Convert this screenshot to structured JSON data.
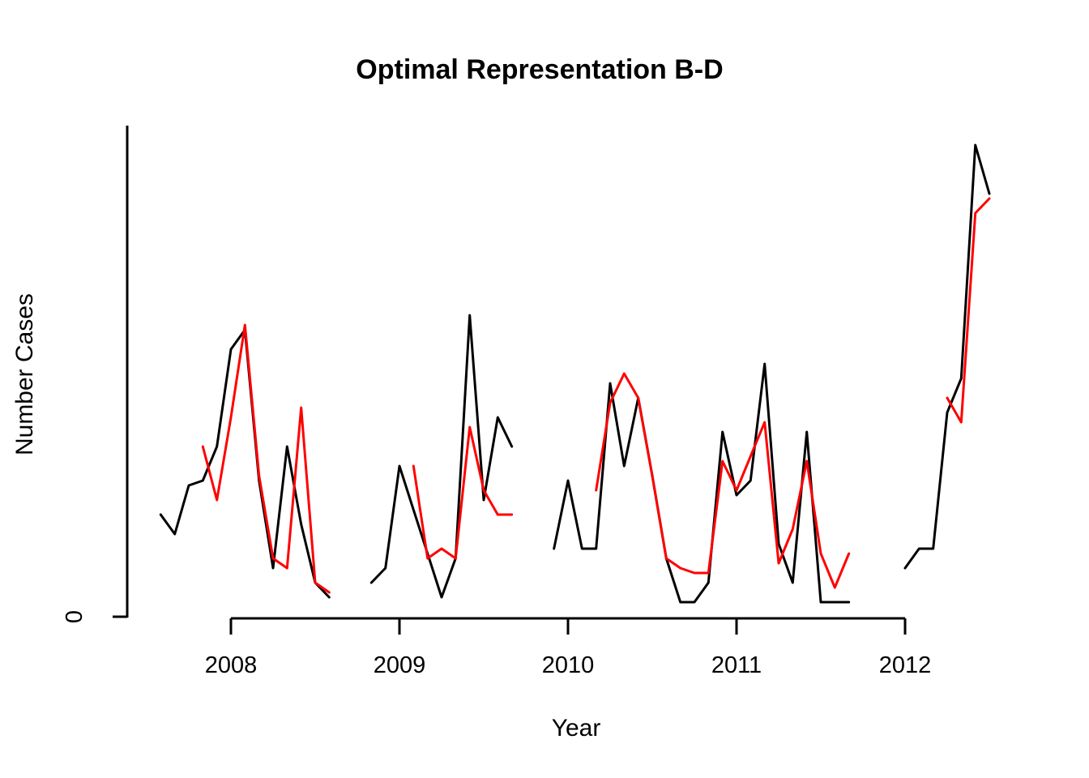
{
  "page": {
    "background": "#ffffff"
  },
  "chart_data": {
    "type": "line",
    "title": "Optimal Representation B-D",
    "xlabel": "Year",
    "ylabel": "Number Cases",
    "x_tick_labels": [
      "2008",
      "2009",
      "2010",
      "2011",
      "2012"
    ],
    "x_tick_years": [
      2008,
      2009,
      2010,
      2011,
      2012
    ],
    "y_tick_labels": [
      "0"
    ],
    "xlim": [
      2007.55,
      2012.6
    ],
    "ylim": [
      0,
      101
    ],
    "grid": false,
    "legend": "none",
    "frequency": "monthly",
    "y_note": "Only '0' is labeled on the y-axis; series values are estimated relative units read from the plot. null = gap (missing month).",
    "categories": [
      "2007-08",
      "2007-09",
      "2007-10",
      "2007-11",
      "2007-12",
      "2008-01",
      "2008-02",
      "2008-03",
      "2008-04",
      "2008-05",
      "2008-06",
      "2008-07",
      "2008-08",
      "2008-09",
      "2008-10",
      "2008-11",
      "2008-12",
      "2009-01",
      "2009-02",
      "2009-03",
      "2009-04",
      "2009-05",
      "2009-06",
      "2009-07",
      "2009-08",
      "2009-09",
      "2009-10",
      "2009-11",
      "2009-12",
      "2010-01",
      "2010-02",
      "2010-03",
      "2010-04",
      "2010-05",
      "2010-06",
      "2010-07",
      "2010-08",
      "2010-09",
      "2010-10",
      "2010-11",
      "2010-12",
      "2011-01",
      "2011-02",
      "2011-03",
      "2011-04",
      "2011-05",
      "2011-06",
      "2011-07",
      "2011-08",
      "2011-09",
      "2011-10",
      "2011-11",
      "2011-12",
      "2012-01",
      "2012-02",
      "2012-03",
      "2012-04",
      "2012-05",
      "2012-06",
      "2012-07"
    ],
    "series": [
      {
        "name": "black-series",
        "color": "#000000",
        "values": [
          21,
          17,
          27,
          28,
          35,
          55,
          59,
          28,
          10,
          35,
          19,
          7,
          4,
          null,
          null,
          7,
          10,
          31,
          22,
          13,
          4,
          12,
          62,
          24,
          41,
          35,
          null,
          null,
          14,
          28,
          14,
          14,
          48,
          31,
          45,
          29,
          12,
          3,
          3,
          7,
          38,
          25,
          28,
          52,
          15,
          7,
          38,
          3,
          3,
          3,
          null,
          null,
          null,
          10,
          14,
          14,
          42,
          49,
          97,
          87
        ]
      },
      {
        "name": "red-series",
        "color": "#FF0000",
        "values": [
          null,
          null,
          null,
          35,
          24,
          41,
          60,
          29,
          12,
          10,
          43,
          7,
          5,
          null,
          null,
          null,
          null,
          null,
          31,
          12,
          14,
          12,
          39,
          26,
          21,
          21,
          null,
          null,
          null,
          null,
          null,
          26,
          44,
          50,
          45,
          29,
          12,
          10,
          9,
          9,
          32,
          26,
          33,
          40,
          11,
          18,
          32,
          13,
          6,
          13,
          null,
          null,
          null,
          null,
          null,
          null,
          45,
          40,
          83,
          86
        ]
      }
    ]
  }
}
